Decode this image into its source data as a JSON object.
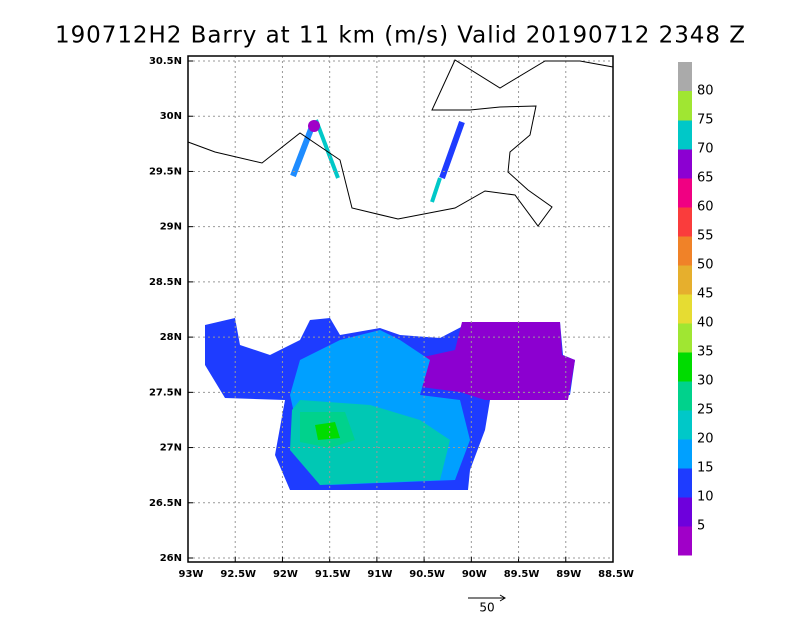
{
  "title": "190712H2 Barry at 11 km (m/s) Valid 20190712 2348 Z",
  "map": {
    "xlim": [
      -93,
      -88.5
    ],
    "ylim": [
      26,
      30.5
    ],
    "xticks": [
      {
        "value": -93,
        "label": "93W"
      },
      {
        "value": -92.5,
        "label": "92.5W"
      },
      {
        "value": -92,
        "label": "92W"
      },
      {
        "value": -91.5,
        "label": "91.5W"
      },
      {
        "value": -91,
        "label": "91W"
      },
      {
        "value": -90.5,
        "label": "90.5W"
      },
      {
        "value": -90,
        "label": "90W"
      },
      {
        "value": -89.5,
        "label": "89.5W"
      },
      {
        "value": -89,
        "label": "89W"
      },
      {
        "value": -88.5,
        "label": "88.5W"
      }
    ],
    "yticks": [
      {
        "value": 26,
        "label": "26N"
      },
      {
        "value": 26.5,
        "label": "26.5N"
      },
      {
        "value": 27,
        "label": "27N"
      },
      {
        "value": 27.5,
        "label": "27.5N"
      },
      {
        "value": 28,
        "label": "28N"
      },
      {
        "value": 28.5,
        "label": "28.5N"
      },
      {
        "value": 29,
        "label": "29N"
      },
      {
        "value": 29.5,
        "label": "29.5N"
      },
      {
        "value": 30,
        "label": "30N"
      },
      {
        "value": 30.5,
        "label": "30.5N"
      }
    ],
    "grid": true
  },
  "colorbar": {
    "levels": [
      5,
      10,
      15,
      20,
      25,
      30,
      35,
      40,
      45,
      50,
      55,
      60,
      65,
      70,
      75,
      80
    ],
    "colors": [
      "#a000c8",
      "#6e00dc",
      "#1e3cff",
      "#00a0ff",
      "#00c8c8",
      "#00d28c",
      "#00dc00",
      "#a0e632",
      "#e6dc32",
      "#e6af2d",
      "#f08228",
      "#fa3c3c",
      "#f00082",
      "#8c00d2",
      "#00c8c8",
      "#a0e632"
    ],
    "over_color": "#aaaaaa"
  },
  "reference_vector": 50
}
